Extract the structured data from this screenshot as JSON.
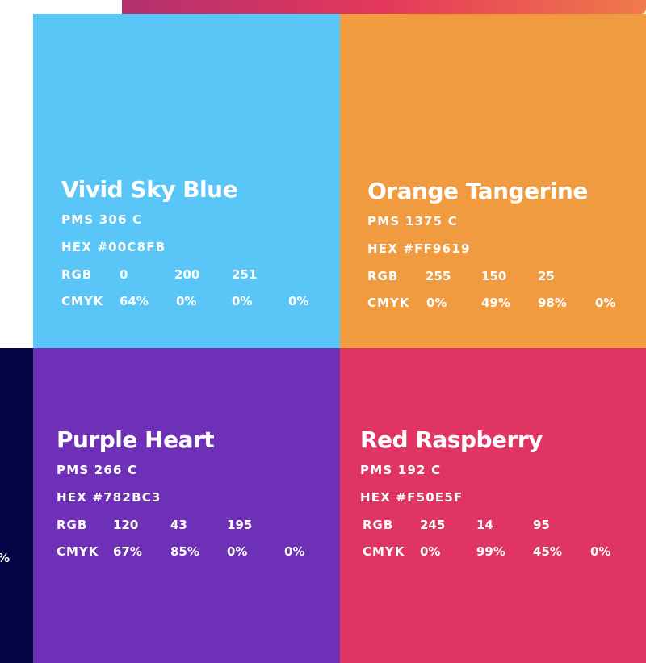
{
  "swatches": [
    {
      "name": "Vivid Sky Blue",
      "pms": "PMS 306 C",
      "hex": "HEX #00C8FB",
      "rgb_label": "RGB",
      "rgb": [
        "0",
        "200",
        "251"
      ],
      "cmyk_label": "CMYK",
      "cmyk": [
        "64%",
        "0%",
        "0%",
        "0%"
      ],
      "color": "#5ac6f7"
    },
    {
      "name": "Orange Tangerine",
      "pms": "PMS 1375 C",
      "hex": "HEX #FF9619",
      "rgb_label": "RGB",
      "rgb": [
        "255",
        "150",
        "25"
      ],
      "cmyk_label": "CMYK",
      "cmyk": [
        "0%",
        "49%",
        "98%",
        "0%"
      ],
      "color": "#f09b3f"
    },
    {
      "name": "Purple Heart",
      "pms": "PMS 266 C",
      "hex": "HEX #782BC3",
      "rgb_label": "RGB",
      "rgb": [
        "120",
        "43",
        "195"
      ],
      "cmyk_label": "CMYK",
      "cmyk": [
        "67%",
        "85%",
        "0%",
        "0%"
      ],
      "color": "#6f30b8"
    },
    {
      "name": "Red Raspberry",
      "pms": "PMS 192 C",
      "hex": "HEX #F50E5F",
      "rgb_label": "RGB",
      "rgb": [
        "245",
        "14",
        "95"
      ],
      "cmyk_label": "CMYK",
      "cmyk": [
        "0%",
        "99%",
        "45%",
        "0%"
      ],
      "color": "#e03562"
    }
  ],
  "partial_swatch": {
    "color": "#050545",
    "cmyk_fragment": "%"
  },
  "top_bar_gradient": [
    "#b3306f",
    "#e4385b",
    "#f07a4a"
  ]
}
